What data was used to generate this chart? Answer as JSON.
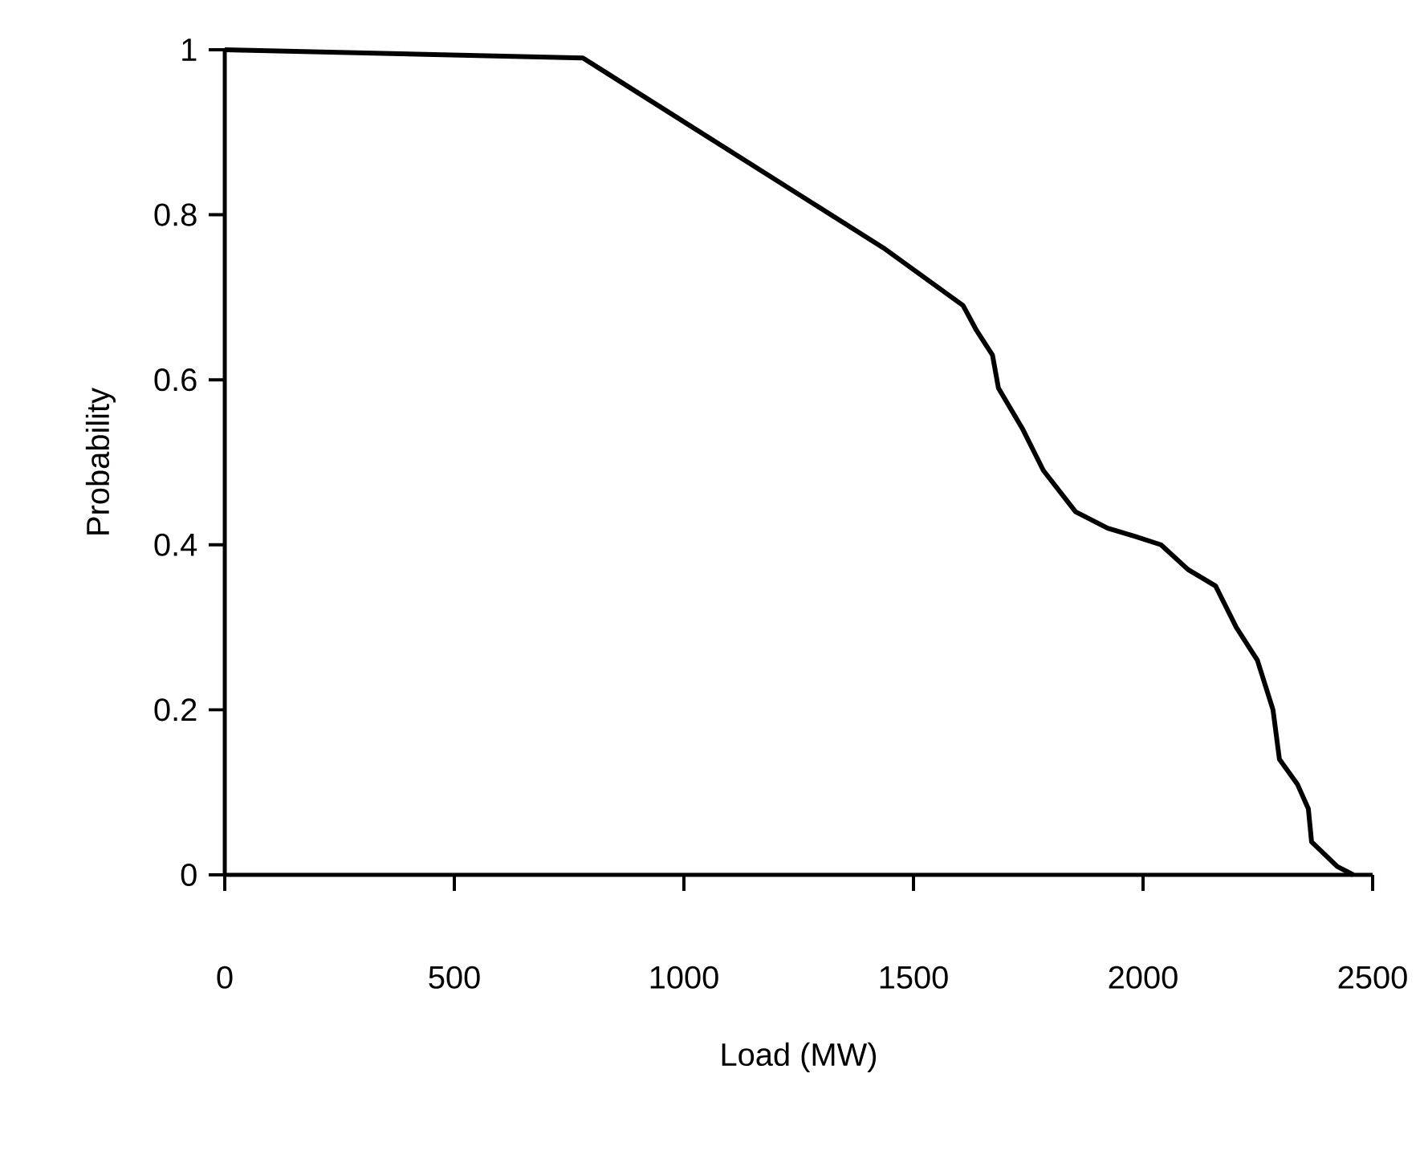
{
  "chart_data": {
    "type": "line",
    "xlabel": "Load (MW)",
    "ylabel": "Probability",
    "x": [
      0,
      780,
      1434,
      1608,
      1637,
      1672,
      1685,
      1738,
      1783,
      1853,
      1923,
      1983,
      2039,
      2098,
      2158,
      2203,
      2249,
      2283,
      2297,
      2336,
      2360,
      2367,
      2423,
      2458
    ],
    "series": [
      {
        "color": "#000000",
        "values": [
          1,
          0.99,
          0.76,
          0.69,
          0.66,
          0.63,
          0.59,
          0.54,
          0.49,
          0.44,
          0.42,
          0.41,
          0.4,
          0.37,
          0.35,
          0.3,
          0.26,
          0.2,
          0.14,
          0.11,
          0.08,
          0.04,
          0.01,
          0
        ]
      }
    ],
    "xlim": [
      0,
      2500
    ],
    "ylim": [
      0,
      1
    ],
    "xticks": [
      0,
      500,
      1000,
      1500,
      2000,
      2500
    ],
    "yticks": [
      0,
      0.2,
      0.4,
      0.6,
      0.8,
      1
    ]
  }
}
